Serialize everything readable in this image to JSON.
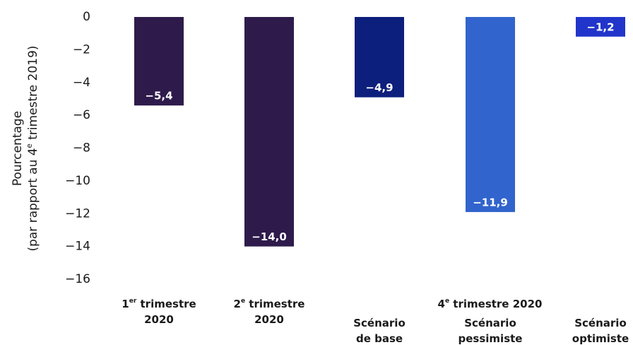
{
  "chart_data": {
    "type": "bar",
    "y_label": "Pourcentage\n(par rapport au 4e trimestre 2019)",
    "categories": [
      "1er trimestre\n2020",
      "2e trimestre\n2020",
      "Scénario\nde base",
      "Scénario\npessimiste",
      "Scénario\noptimiste"
    ],
    "groups": [
      {
        "label": "4e trimestre 2020",
        "first": 2,
        "last": 4
      }
    ],
    "values": [
      -5.4,
      -14.0,
      -4.9,
      -11.9,
      -1.2
    ],
    "value_labels": [
      "−5,4",
      "−14,0",
      "−4,9",
      "−11,9",
      "−1,2"
    ],
    "colors": [
      "#2e1b4b",
      "#2e1b4b",
      "#0d1f7c",
      "#3164cc",
      "#2135cb"
    ],
    "ylim": [
      0,
      -16
    ],
    "yticks": [
      0,
      {
        "value": -2,
        "label": "−2"
      },
      {
        "value": -4,
        "label": "−4"
      },
      {
        "value": -6,
        "label": "−6"
      },
      {
        "value": -8,
        "label": "−8"
      },
      {
        "value": -10,
        "label": "−10"
      },
      {
        "value": -12,
        "label": "−12"
      },
      {
        "value": -14,
        "label": "−14"
      },
      {
        "value": -16,
        "label": "−16"
      }
    ],
    "grid": false
  }
}
